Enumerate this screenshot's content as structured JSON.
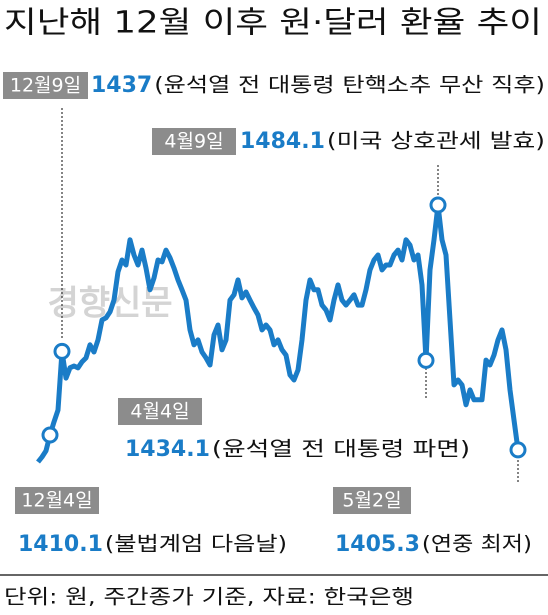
{
  "chart_data": {
    "type": "line",
    "title": "지난해 12월 이후 원·달러 환율 추이",
    "watermark": "경향신문",
    "footnote": "단위: 원, 주간종가 기준, 자료: 한국은행",
    "color": "#1a7cc7",
    "values": [
      1401.4,
      1403.0,
      1405.0,
      1410.1,
      1414.3,
      1418.1,
      1437,
      1428.4,
      1431.7,
      1432.3,
      1431.7,
      1433.6,
      1434.9,
      1439.1,
      1436.8,
      1440.7,
      1447.1,
      1447.8,
      1449.7,
      1453.5,
      1462.6,
      1466.4,
      1464.8,
      1472.9,
      1468.0,
      1464.8,
      1469.6,
      1463.8,
      1456.8,
      1460.6,
      1466.4,
      1465.8,
      1469.6,
      1467.1,
      1463.8,
      1460.0,
      1456.8,
      1453.5,
      1443.9,
      1439.1,
      1440.7,
      1436.8,
      1434.9,
      1432.6,
      1442.3,
      1445.5,
      1437.5,
      1440.7,
      1453.5,
      1455.2,
      1460.0,
      1454.2,
      1456.1,
      1453.5,
      1451.0,
      1448.7,
      1443.9,
      1445.5,
      1443.9,
      1439.1,
      1440.7,
      1437.5,
      1435.8,
      1429.4,
      1427.8,
      1431.0,
      1440.7,
      1453.5,
      1460.0,
      1456.8,
      1456.8,
      1451.9,
      1450.3,
      1447.1,
      1453.5,
      1458.4,
      1453.5,
      1451.9,
      1453.5,
      1455.2,
      1451.9,
      1451.9,
      1456.8,
      1463.2,
      1466.4,
      1468.0,
      1463.2,
      1464.8,
      1464.8,
      1468.0,
      1469.6,
      1466.4,
      1472.9,
      1471.2,
      1466.4,
      1468.0,
      1458.4,
      1434.1,
      1463.2,
      1472.9,
      1484.1,
      1472.9,
      1468.0,
      1447.1,
      1426.2,
      1427.8,
      1426.2,
      1419.8,
      1424.6,
      1421.4,
      1421.4,
      1421.4,
      1434.2,
      1432.6,
      1435.8,
      1440.7,
      1443.9,
      1437.5,
      1424.6,
      1414.9,
      1405.3
    ],
    "annotations": [
      {
        "date": "12월9일",
        "value": 1437,
        "note": "(윤석열 전 대통령 탄핵소추 무산 직후)"
      },
      {
        "date": "4월9일",
        "value": 1484.1,
        "note": "(미국 상호관세 발효)"
      },
      {
        "date": "4월4일",
        "value": 1434.1,
        "note": "(윤석열 전 대통령 파면)"
      },
      {
        "date": "12월4일",
        "value": 1410.1,
        "note": "(불법계엄 다음날)"
      },
      {
        "date": "5월2일",
        "value": 1405.3,
        "note": "(연중 최저)"
      }
    ]
  }
}
